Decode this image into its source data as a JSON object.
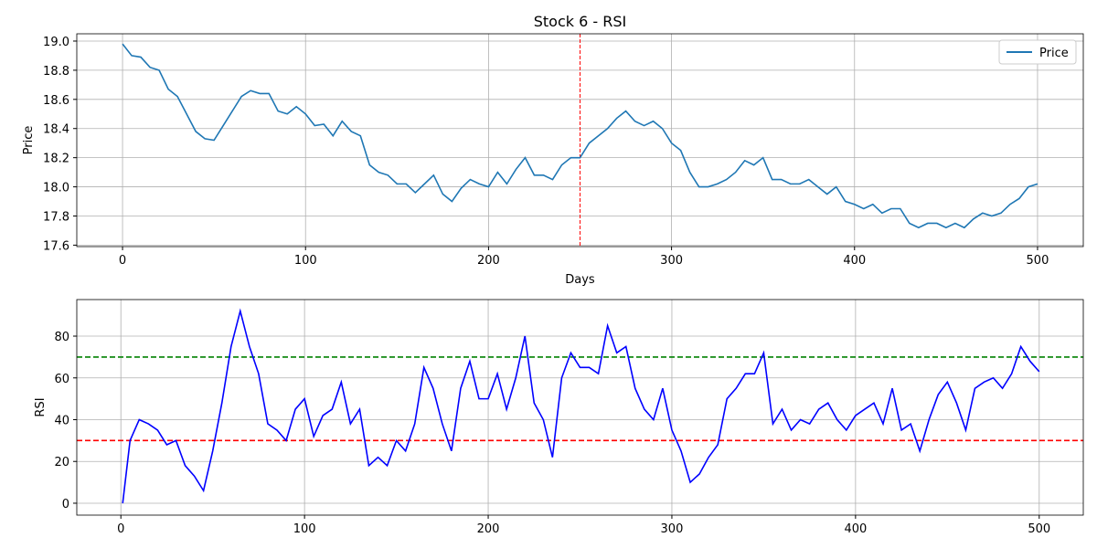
{
  "chart_data": [
    {
      "type": "line",
      "title": "Stock 6 - RSI",
      "xlabel": "Days",
      "ylabel": "Price",
      "x": [
        0,
        5,
        10,
        15,
        20,
        25,
        30,
        35,
        40,
        45,
        50,
        55,
        60,
        65,
        70,
        75,
        80,
        85,
        90,
        95,
        100,
        105,
        110,
        115,
        120,
        125,
        130,
        135,
        140,
        145,
        150,
        155,
        160,
        165,
        170,
        175,
        180,
        185,
        190,
        195,
        200,
        205,
        210,
        215,
        220,
        225,
        230,
        235,
        240,
        245,
        250,
        255,
        260,
        265,
        270,
        275,
        280,
        285,
        290,
        295,
        300,
        305,
        310,
        315,
        320,
        325,
        330,
        335,
        340,
        345,
        350,
        355,
        360,
        365,
        370,
        375,
        380,
        385,
        390,
        395,
        400,
        405,
        410,
        415,
        420,
        425,
        430,
        435,
        440,
        445,
        450,
        455,
        460,
        465,
        470,
        475,
        480,
        485,
        490,
        495,
        500
      ],
      "series": [
        {
          "name": "Price",
          "color": "#1f77b4",
          "values": [
            18.98,
            18.9,
            18.89,
            18.82,
            18.8,
            18.67,
            18.62,
            18.5,
            18.38,
            18.33,
            18.32,
            18.42,
            18.52,
            18.62,
            18.66,
            18.64,
            18.64,
            18.52,
            18.5,
            18.55,
            18.5,
            18.42,
            18.43,
            18.35,
            18.45,
            18.38,
            18.35,
            18.15,
            18.1,
            18.08,
            18.02,
            18.02,
            17.96,
            18.02,
            18.08,
            17.95,
            17.9,
            17.99,
            18.05,
            18.02,
            18.0,
            18.1,
            18.02,
            18.12,
            18.2,
            18.08,
            18.08,
            18.05,
            18.15,
            18.2,
            18.2,
            18.3,
            18.35,
            18.4,
            18.47,
            18.52,
            18.45,
            18.42,
            18.45,
            18.4,
            18.3,
            18.25,
            18.1,
            18.0,
            18.0,
            18.02,
            18.05,
            18.1,
            18.18,
            18.15,
            18.2,
            18.05,
            18.05,
            18.02,
            18.02,
            18.05,
            18.0,
            17.95,
            18.0,
            17.9,
            17.88,
            17.85,
            17.88,
            17.82,
            17.85,
            17.85,
            17.75,
            17.72,
            17.75,
            17.75,
            17.72,
            17.75,
            17.72,
            17.78,
            17.82,
            17.8,
            17.82,
            17.88,
            17.92,
            18.0,
            18.02
          ]
        }
      ],
      "xlim": [
        -25,
        525
      ],
      "xticks": [
        0,
        100,
        200,
        300,
        400,
        500
      ],
      "ylim": [
        17.59,
        19.05
      ],
      "yticks": [
        17.6,
        17.8,
        {
          "value": 18,
          "label": "18.0"
        },
        18.2,
        18.4,
        18.6,
        18.8,
        {
          "value": 19,
          "label": "19.0"
        }
      ],
      "grid": true,
      "legend": "upper right",
      "vlines": [
        {
          "x": 250,
          "color": "red"
        }
      ]
    },
    {
      "type": "line",
      "ylabel": "RSI",
      "color": "blue",
      "x": [
        1,
        5,
        10,
        15,
        20,
        25,
        30,
        35,
        40,
        45,
        50,
        55,
        60,
        65,
        70,
        75,
        80,
        85,
        90,
        95,
        100,
        105,
        110,
        115,
        120,
        125,
        130,
        135,
        140,
        145,
        150,
        155,
        160,
        165,
        170,
        175,
        180,
        185,
        190,
        195,
        200,
        205,
        210,
        215,
        220,
        225,
        230,
        235,
        240,
        245,
        250,
        255,
        260,
        265,
        270,
        275,
        280,
        285,
        290,
        295,
        300,
        305,
        310,
        315,
        320,
        325,
        330,
        335,
        340,
        345,
        350,
        355,
        360,
        365,
        370,
        375,
        380,
        385,
        390,
        395,
        400,
        405,
        410,
        415,
        420,
        425,
        430,
        435,
        440,
        445,
        450,
        455,
        460,
        465,
        470,
        475,
        480,
        485,
        490,
        495,
        500
      ],
      "values": [
        0,
        30,
        40,
        38,
        35,
        28,
        30,
        18,
        13,
        6,
        25,
        48,
        75,
        92,
        75,
        62,
        38,
        35,
        30,
        45,
        50,
        32,
        42,
        45,
        58,
        38,
        45,
        18,
        22,
        18,
        30,
        25,
        38,
        65,
        55,
        38,
        25,
        55,
        68,
        50,
        50,
        62,
        45,
        60,
        80,
        48,
        40,
        22,
        60,
        72,
        65,
        65,
        62,
        85,
        72,
        75,
        55,
        45,
        40,
        55,
        35,
        25,
        10,
        14,
        22,
        28,
        50,
        55,
        62,
        62,
        72,
        38,
        45,
        35,
        40,
        38,
        45,
        48,
        40,
        35,
        42,
        45,
        48,
        38,
        55,
        35,
        38,
        25,
        40,
        52,
        58,
        48,
        35,
        55,
        58,
        60,
        55,
        62,
        75,
        68,
        63
      ],
      "xlim": [
        -24,
        524
      ],
      "xticks": [
        0,
        100,
        200,
        300,
        400,
        500
      ],
      "ylim": [
        -5.7,
        97.5
      ],
      "yticks": [
        0,
        20,
        40,
        60,
        80
      ],
      "grid": true,
      "hlines": [
        {
          "y": 70,
          "color": "green"
        },
        {
          "y": 30,
          "color": "red"
        }
      ]
    }
  ]
}
